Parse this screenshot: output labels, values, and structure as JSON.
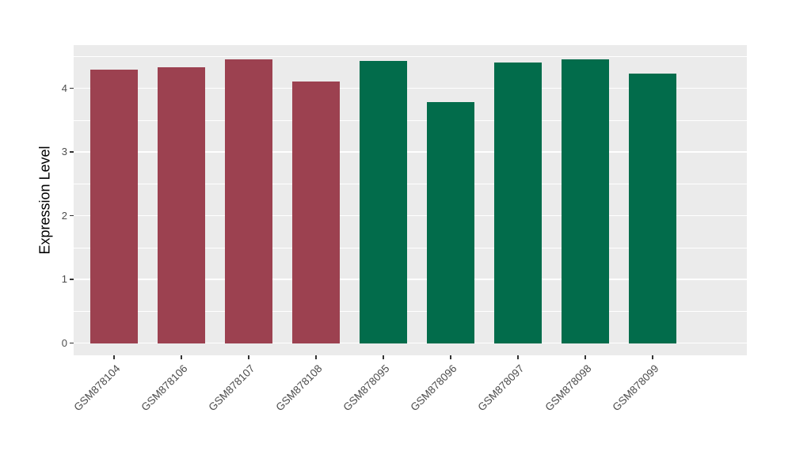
{
  "chart_data": {
    "type": "bar",
    "title": "",
    "xlabel": "",
    "ylabel": "Expression Level",
    "categories": [
      "GSM878104",
      "GSM878106",
      "GSM878107",
      "GSM878108",
      "GSM878095",
      "GSM878096",
      "GSM878097",
      "GSM878098",
      "GSM878099"
    ],
    "values": [
      4.29,
      4.33,
      4.46,
      4.11,
      4.43,
      3.79,
      4.41,
      4.46,
      4.23
    ],
    "groups": [
      "group1",
      "group1",
      "group1",
      "group1",
      "group2",
      "group2",
      "group2",
      "group2",
      "group2"
    ],
    "group_colors": {
      "group1": "#9C4150",
      "group2": "#026C4B"
    },
    "y_ticks": [
      "0",
      "1",
      "2",
      "3",
      "4"
    ],
    "y_tick_values": [
      0,
      1,
      2,
      3,
      4
    ],
    "y_minor_tick_values": [
      0.5,
      1.5,
      2.5,
      3.5,
      4.5
    ],
    "ylim": [
      -0.19,
      4.68
    ],
    "bar_rel_width": 0.7,
    "x_expand_units": 0.6,
    "grid": {
      "major": true,
      "minor": true
    },
    "legend": "none",
    "colors": {
      "panel_background": "#EBEBEB",
      "grid": "#FFFFFF",
      "tick_mark": "#333333",
      "axis_text": "#4D4D4D",
      "axis_title": "#000000",
      "figure_background": "#FFFFFF"
    }
  }
}
